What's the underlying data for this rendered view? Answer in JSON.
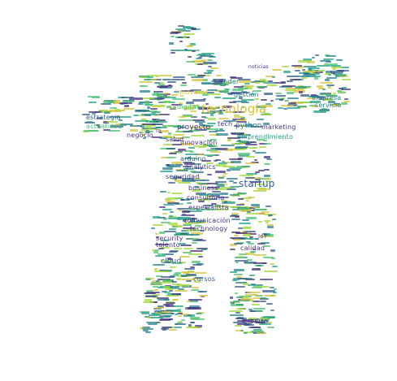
{
  "palette": {
    "purple": "#46327e",
    "blue": "#365c8d",
    "teal": "#277f8e",
    "green": "#1fa187",
    "lightgreen": "#4ac16d",
    "lime": "#a0da39",
    "yellow": "#d8c33a"
  },
  "words": [
    {
      "text": "tecnología"
    },
    {
      "text": "startup"
    },
    {
      "text": "innovación"
    },
    {
      "text": "proyecto"
    },
    {
      "text": "emprendimiento"
    },
    {
      "text": "marketing"
    },
    {
      "text": "empresa"
    },
    {
      "text": "servicio"
    },
    {
      "text": "founder"
    },
    {
      "text": "gestión"
    },
    {
      "text": "digital"
    },
    {
      "text": "python"
    },
    {
      "text": "tech"
    },
    {
      "text": "estrategia"
    },
    {
      "text": "actualidad"
    },
    {
      "text": "negocio"
    },
    {
      "text": "salud"
    },
    {
      "text": "arduino"
    },
    {
      "text": "analytics"
    },
    {
      "text": "seguridad"
    },
    {
      "text": "business"
    },
    {
      "text": "consultoría"
    },
    {
      "text": "especialista"
    },
    {
      "text": "comunicación"
    },
    {
      "text": "technology"
    },
    {
      "text": "security"
    },
    {
      "text": "talento"
    },
    {
      "text": "cloud"
    },
    {
      "text": "calidad"
    },
    {
      "text": "experto"
    },
    {
      "text": "cursos"
    },
    {
      "text": "IoT"
    },
    {
      "text": "noticias"
    },
    {
      "text": "innovator"
    },
    {
      "text": "ia"
    }
  ]
}
